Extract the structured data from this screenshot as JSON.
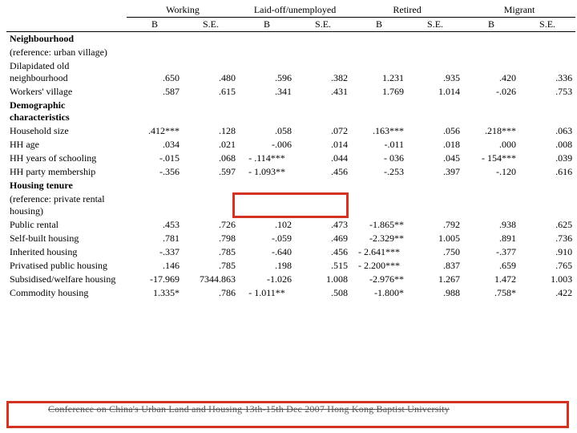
{
  "table": {
    "groups": [
      "Working",
      "Laid-off/unemployed",
      "Retired",
      "Migrant"
    ],
    "subheaders": [
      "B",
      "S.E.",
      "B",
      "S.E.",
      "B",
      "S.E.",
      "B",
      "S.E."
    ],
    "sections": [
      {
        "title": "Neighbourhood",
        "reference": "(reference: urban village)",
        "rows": [
          {
            "label": "Dilapidated old neighbourhood",
            "cells": [
              ".650",
              ".480",
              ".596",
              ".382",
              "1.231",
              ".935",
              ".420",
              ".336"
            ]
          },
          {
            "label": "Workers' village",
            "cells": [
              ".587",
              ".615",
              ".341",
              ".431",
              "1.769",
              "1.014",
              "-.026",
              ".753"
            ]
          }
        ]
      },
      {
        "title": "Demographic characteristics",
        "reference": null,
        "rows": [
          {
            "label": "Household size",
            "cells": [
              ".412***",
              ".128",
              ".058",
              ".072",
              ".163***",
              ".056",
              ".218***",
              ".063"
            ]
          },
          {
            "label": "HH age",
            "cells": [
              ".034",
              ".021",
              "-.006",
              ".014",
              "-.011",
              ".018",
              ".000",
              ".008"
            ]
          },
          {
            "label": "HH years of schooling",
            "cells": [
              "-.015",
              ".068",
              "- .114***",
              ".044",
              "- 036",
              ".045",
              "- 154***",
              ".039"
            ],
            "center_b2": true
          },
          {
            "label": "HH party membership",
            "cells": [
              "-.356",
              ".597",
              "- 1.093**",
              ".456",
              "-.253",
              ".397",
              "-.120",
              ".616"
            ],
            "center_b2": true
          }
        ]
      },
      {
        "title": "Housing tenure",
        "reference": "(reference: private rental housing)",
        "rows": [
          {
            "label": "Public rental",
            "cells": [
              ".453",
              ".726",
              ".102",
              ".473",
              "-1.865**",
              ".792",
              ".938",
              ".625"
            ]
          },
          {
            "label": "Self-built housing",
            "cells": [
              ".781",
              ".798",
              "-.059",
              ".469",
              "-2.329**",
              "1.005",
              ".891",
              ".736"
            ]
          },
          {
            "label": "Inherited housing",
            "cells": [
              "-.337",
              ".785",
              "-.640",
              ".456",
              "- 2.641***",
              ".750",
              "-.377",
              ".910"
            ],
            "center_b3": true
          },
          {
            "label": "Privatised public housing",
            "cells": [
              ".146",
              ".785",
              ".198",
              ".515",
              "- 2.200***",
              ".837",
              ".659",
              ".765"
            ],
            "center_b3": true
          },
          {
            "label": "Subsidised/welfare housing",
            "cells": [
              "-17.969",
              "7344.863",
              "-1.026",
              "1.008",
              "-2.976**",
              "1.267",
              "1.472",
              "1.003"
            ]
          },
          {
            "label": "Commodity housing",
            "cells": [
              "1.335*",
              ".786",
              "- 1.011**",
              ".508",
              "-1.800*",
              ".988",
              ".758*",
              ".422"
            ],
            "center_b2": true
          }
        ]
      }
    ]
  },
  "footer_watermark": "Conference on China's Urban Land and Housing       13th-15th Dec 2007 Hong Kong Baptist University",
  "highlight_color": "#d43324",
  "background_color": "#ffffff",
  "text_color": "#000000"
}
